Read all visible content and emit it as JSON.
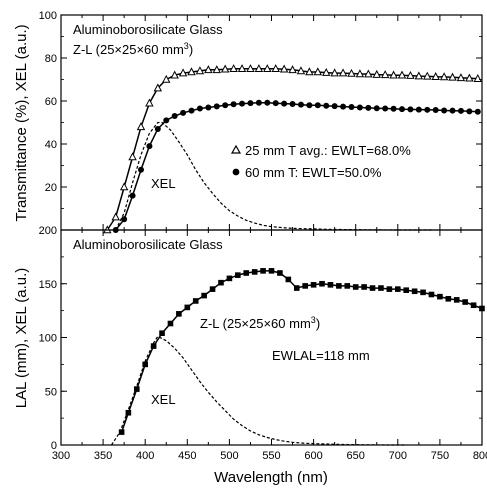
{
  "chart_data": [
    {
      "type": "line",
      "panel": "top",
      "annotation_title": "Aluminoborosilicate Glass",
      "annotation_subtitle_prefix": "Z-L (25×25×60 mm",
      "annotation_subtitle_sup": "3",
      "annotation_subtitle_suffix": ")",
      "ylabel": "Transmittance (%), XEL (a.u.)",
      "xlabel": "",
      "xlim": [
        300,
        800
      ],
      "ylim": [
        0,
        100
      ],
      "y_ticks": [
        "0",
        "20",
        "40",
        "60",
        "80",
        "100"
      ],
      "y_tick_values": [
        0,
        20,
        40,
        60,
        80,
        100
      ],
      "legend_placement": "center-right",
      "series": [
        {
          "name": "25 mm T avg.: EWLT=68.0%",
          "marker": "triangle",
          "style": "solid",
          "x": [
            355,
            365,
            375,
            385,
            395,
            405,
            415,
            425,
            435,
            445,
            455,
            465,
            475,
            485,
            495,
            505,
            515,
            525,
            535,
            545,
            555,
            565,
            575,
            585,
            595,
            605,
            615,
            625,
            635,
            645,
            655,
            665,
            675,
            685,
            695,
            705,
            715,
            725,
            735,
            745,
            755,
            765,
            775,
            785,
            795
          ],
          "y": [
            0,
            6,
            20,
            34,
            48,
            59,
            66,
            70,
            72,
            73,
            73.5,
            74,
            74.5,
            74.5,
            74.8,
            75,
            75,
            75,
            75,
            75,
            75,
            74.8,
            74.5,
            74,
            73.5,
            73.5,
            73.2,
            73,
            73,
            72.8,
            72.6,
            72.5,
            72.3,
            72.2,
            72,
            72,
            71.8,
            71.6,
            71.5,
            71.3,
            71.2,
            71,
            70.8,
            70.6,
            70.4
          ]
        },
        {
          "name": "60 mm T: EWLT=50.0%",
          "marker": "circle",
          "style": "solid",
          "x": [
            365,
            375,
            385,
            395,
            405,
            415,
            425,
            435,
            445,
            455,
            465,
            475,
            485,
            495,
            505,
            515,
            525,
            535,
            545,
            555,
            565,
            575,
            585,
            595,
            605,
            615,
            625,
            635,
            645,
            655,
            665,
            675,
            685,
            695,
            705,
            715,
            725,
            735,
            745,
            755,
            765,
            775,
            785,
            795
          ],
          "y": [
            0,
            5,
            16,
            28,
            39,
            47,
            51,
            53,
            54.5,
            55.5,
            56.5,
            57,
            57.5,
            58,
            58.5,
            58.8,
            59,
            59.2,
            59.2,
            59,
            58.8,
            58.6,
            58.3,
            58,
            58,
            57.8,
            57.6,
            57.4,
            57.2,
            57,
            56.8,
            56.6,
            56.5,
            56.4,
            56.2,
            56.1,
            56,
            55.9,
            55.8,
            55.6,
            55.5,
            55.4,
            55.2,
            55
          ]
        },
        {
          "name": "XEL",
          "marker": "none",
          "style": "dashed",
          "x": [
            365,
            375,
            385,
            395,
            405,
            415,
            420,
            430,
            440,
            450,
            460,
            470,
            480,
            490,
            500,
            510,
            520,
            530,
            540,
            550,
            560,
            570,
            580,
            600,
            620,
            640,
            660,
            680,
            700,
            720,
            740
          ],
          "y": [
            0,
            8,
            22,
            35,
            45,
            50,
            50,
            46.5,
            41,
            35,
            28,
            22,
            17,
            12.5,
            9,
            6.5,
            4.5,
            3.2,
            2.2,
            1.6,
            1.2,
            0.9,
            0.7,
            0.5,
            0.3,
            0.2,
            0.1,
            0.05,
            0,
            0,
            0
          ]
        }
      ],
      "labels": {
        "xel": "XEL"
      }
    },
    {
      "type": "line",
      "panel": "bottom",
      "annotation_title": "Aluminoborosilicate Glass",
      "annotation_subtitle_prefix": "Z-L (25×25×60 mm",
      "annotation_subtitle_sup": "3",
      "annotation_subtitle_suffix": ")",
      "annotation_ewlal": "EWLAL=118 mm",
      "ylabel": "LAL (mm), XEL (a.u.)",
      "xlabel": "Wavelength (nm)",
      "xlim": [
        300,
        800
      ],
      "ylim": [
        0,
        200
      ],
      "x_ticks": [
        "300",
        "350",
        "400",
        "450",
        "500",
        "550",
        "600",
        "650",
        "700",
        "750",
        "800"
      ],
      "x_tick_values": [
        300,
        350,
        400,
        450,
        500,
        550,
        600,
        650,
        700,
        750,
        800
      ],
      "y_ticks": [
        "0",
        "50",
        "100",
        "150",
        "200"
      ],
      "y_tick_values": [
        0,
        50,
        100,
        150,
        200
      ],
      "series": [
        {
          "name": "LAL",
          "marker": "square",
          "style": "solid",
          "x": [
            372,
            380,
            390,
            400,
            410,
            420,
            430,
            440,
            450,
            460,
            470,
            480,
            490,
            500,
            510,
            520,
            530,
            540,
            550,
            560,
            570,
            580,
            590,
            600,
            610,
            620,
            630,
            640,
            650,
            660,
            670,
            680,
            690,
            700,
            710,
            720,
            730,
            740,
            750,
            760,
            770,
            780,
            790,
            800
          ],
          "y": [
            12,
            30,
            52,
            75,
            92,
            104,
            113,
            122,
            128,
            134,
            139,
            145,
            151,
            155,
            158,
            160,
            161,
            162,
            162,
            160,
            154,
            146,
            148,
            149,
            150,
            149,
            148,
            148,
            147,
            147,
            146,
            146,
            145,
            145,
            144,
            143,
            142,
            140,
            138,
            136,
            135,
            133,
            130,
            127
          ]
        },
        {
          "name": "XEL",
          "marker": "none",
          "style": "dashed",
          "x": [
            360,
            370,
            380,
            390,
            400,
            410,
            415,
            425,
            435,
            445,
            455,
            465,
            475,
            485,
            495,
            505,
            515,
            525,
            535,
            545,
            555,
            565,
            575,
            590,
            610,
            630,
            650,
            670,
            690,
            710
          ],
          "y": [
            0,
            12,
            33,
            55,
            78,
            95,
            101,
            97,
            90,
            81,
            70,
            59,
            49,
            40,
            32,
            24,
            18,
            13,
            9.5,
            7,
            5,
            3.5,
            2.5,
            1.6,
            1,
            0.6,
            0.3,
            0.1,
            0,
            0
          ]
        }
      ],
      "labels": {
        "xel": "XEL"
      }
    }
  ]
}
